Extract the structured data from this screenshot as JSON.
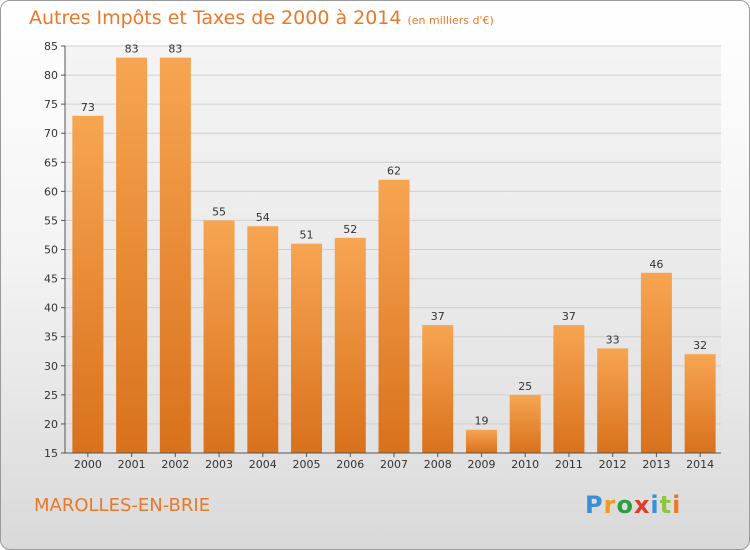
{
  "title": "Autres Impôts et Taxes de 2000 à 2014",
  "unit_note": "(en milliers d'€)",
  "commune": "MAROLLES-EN-BRIE",
  "logo": {
    "text": "Proxiti",
    "letter_colors": [
      "#3a8fd6",
      "#f29a1f",
      "#2a9f3c",
      "#e23a2a",
      "#3a8fd6",
      "#8dc63f",
      "#e8782a"
    ]
  },
  "chart_data": {
    "type": "bar",
    "title": "Autres Impôts et Taxes de 2000 à 2014",
    "xlabel": "",
    "ylabel": "",
    "categories": [
      "2000",
      "2001",
      "2002",
      "2003",
      "2004",
      "2005",
      "2006",
      "2007",
      "2008",
      "2009",
      "2010",
      "2011",
      "2012",
      "2013",
      "2014"
    ],
    "values": [
      73,
      83,
      83,
      55,
      54,
      51,
      52,
      62,
      37,
      19,
      25,
      37,
      33,
      46,
      32
    ],
    "ylim": [
      15,
      85
    ],
    "yticks": [
      15,
      20,
      25,
      30,
      35,
      40,
      45,
      50,
      55,
      60,
      65,
      70,
      75,
      80,
      85
    ],
    "grid": true,
    "bar_color_top": "#f7a552",
    "bar_color_bottom": "#d9711c"
  }
}
